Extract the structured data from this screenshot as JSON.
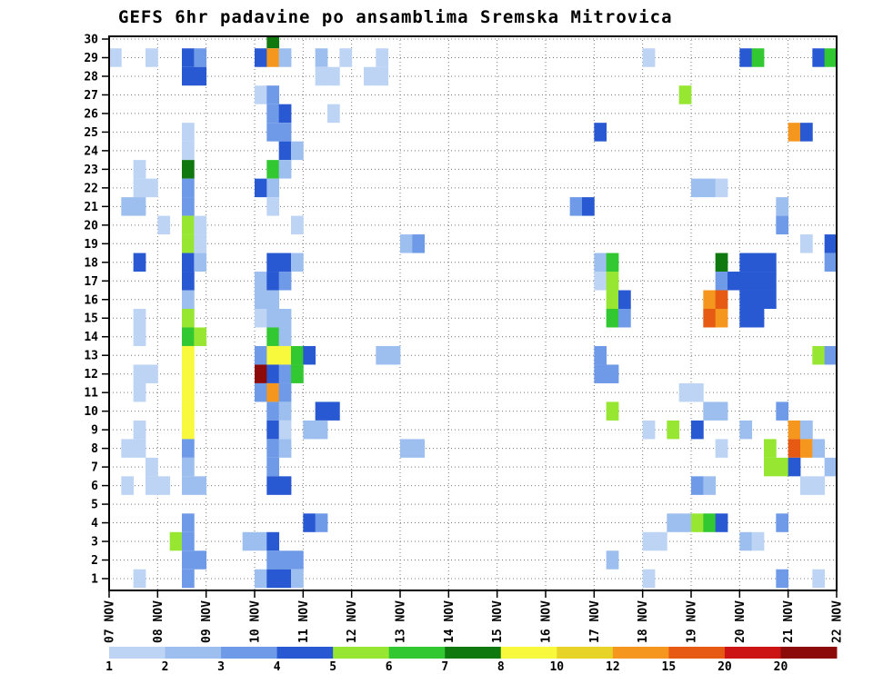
{
  "chart_data": {
    "type": "heatmap",
    "title": "GEFS 6hr padavine po ansamblima Sremska Mitrovica",
    "x_axis": {
      "labels": [
        "07 NOV",
        "08 NOV",
        "09 NOV",
        "10 NOV",
        "11 NOV",
        "12 NOV",
        "13 NOV",
        "14 NOV",
        "15 NOV",
        "16 NOV",
        "17 NOV",
        "18 NOV",
        "19 NOV",
        "20 NOV",
        "21 NOV",
        "22 NOV"
      ],
      "steps_per_day": 4
    },
    "y_axis": {
      "labels": [
        "1",
        "2",
        "3",
        "4",
        "5",
        "6",
        "7",
        "8",
        "9",
        "10",
        "11",
        "12",
        "13",
        "14",
        "15",
        "16",
        "17",
        "18",
        "19",
        "20",
        "21",
        "22",
        "23",
        "24",
        "25",
        "26",
        "27",
        "28",
        "29",
        "30"
      ],
      "description": "ensemble member"
    },
    "grid": true,
    "legend": {
      "position": "bottom",
      "boundary_labels": [
        "1",
        "2",
        "3",
        "4",
        "5",
        "6",
        "7",
        "8",
        "10",
        "12",
        "15",
        "20",
        "20"
      ],
      "colors": [
        "#bdd4f5",
        "#9dbff0",
        "#6e9ae8",
        "#2858d2",
        "#96e632",
        "#32c832",
        "#0f780f",
        "#f8f83c",
        "#e8d428",
        "#f5961e",
        "#e65a14",
        "#cd1414",
        "#8c0a0a"
      ]
    },
    "cells": [
      [
        30,
        13,
        6
      ],
      [
        29,
        0,
        0
      ],
      [
        29,
        3,
        0
      ],
      [
        29,
        6,
        3
      ],
      [
        29,
        7,
        2
      ],
      [
        29,
        12,
        3
      ],
      [
        29,
        13,
        9
      ],
      [
        29,
        14,
        1
      ],
      [
        29,
        17,
        1
      ],
      [
        29,
        19,
        0
      ],
      [
        29,
        22,
        0
      ],
      [
        29,
        44,
        0
      ],
      [
        29,
        52,
        3
      ],
      [
        29,
        53,
        5
      ],
      [
        29,
        58,
        3
      ],
      [
        29,
        59,
        5
      ],
      [
        28,
        6,
        3
      ],
      [
        28,
        7,
        3
      ],
      [
        28,
        17,
        0
      ],
      [
        28,
        18,
        0
      ],
      [
        28,
        21,
        0
      ],
      [
        28,
        22,
        0
      ],
      [
        27,
        12,
        0
      ],
      [
        27,
        13,
        2
      ],
      [
        27,
        47,
        4
      ],
      [
        26,
        13,
        2
      ],
      [
        26,
        14,
        3
      ],
      [
        26,
        18,
        0
      ],
      [
        25,
        6,
        0
      ],
      [
        25,
        13,
        2
      ],
      [
        25,
        14,
        2
      ],
      [
        25,
        40,
        3
      ],
      [
        25,
        56,
        9
      ],
      [
        25,
        57,
        3
      ],
      [
        24,
        6,
        0
      ],
      [
        24,
        14,
        3
      ],
      [
        24,
        15,
        1
      ],
      [
        23,
        2,
        0
      ],
      [
        23,
        6,
        6
      ],
      [
        23,
        13,
        5
      ],
      [
        23,
        14,
        1
      ],
      [
        22,
        2,
        0
      ],
      [
        22,
        3,
        0
      ],
      [
        22,
        6,
        2
      ],
      [
        22,
        12,
        3
      ],
      [
        22,
        13,
        1
      ],
      [
        22,
        48,
        1
      ],
      [
        22,
        49,
        1
      ],
      [
        22,
        50,
        0
      ],
      [
        21,
        1,
        1
      ],
      [
        21,
        2,
        1
      ],
      [
        21,
        6,
        2
      ],
      [
        21,
        13,
        0
      ],
      [
        21,
        38,
        2
      ],
      [
        21,
        39,
        3
      ],
      [
        21,
        55,
        1
      ],
      [
        20,
        4,
        0
      ],
      [
        20,
        6,
        4
      ],
      [
        20,
        7,
        0
      ],
      [
        20,
        15,
        0
      ],
      [
        20,
        55,
        2
      ],
      [
        19,
        6,
        4
      ],
      [
        19,
        7,
        0
      ],
      [
        19,
        24,
        1
      ],
      [
        19,
        25,
        2
      ],
      [
        19,
        57,
        0
      ],
      [
        19,
        59,
        3
      ],
      [
        18,
        2,
        3
      ],
      [
        18,
        6,
        3
      ],
      [
        18,
        7,
        1
      ],
      [
        18,
        13,
        3
      ],
      [
        18,
        14,
        3
      ],
      [
        18,
        15,
        1
      ],
      [
        18,
        40,
        1
      ],
      [
        18,
        41,
        5
      ],
      [
        18,
        50,
        6
      ],
      [
        18,
        52,
        3
      ],
      [
        18,
        53,
        3
      ],
      [
        18,
        54,
        3
      ],
      [
        18,
        59,
        2
      ],
      [
        17,
        6,
        3
      ],
      [
        17,
        12,
        1
      ],
      [
        17,
        13,
        3
      ],
      [
        17,
        14,
        2
      ],
      [
        17,
        40,
        0
      ],
      [
        17,
        41,
        4
      ],
      [
        17,
        50,
        2
      ],
      [
        17,
        51,
        3
      ],
      [
        17,
        52,
        3
      ],
      [
        17,
        53,
        3
      ],
      [
        17,
        54,
        3
      ],
      [
        16,
        6,
        1
      ],
      [
        16,
        12,
        1
      ],
      [
        16,
        13,
        1
      ],
      [
        16,
        41,
        4
      ],
      [
        16,
        42,
        3
      ],
      [
        16,
        49,
        9
      ],
      [
        16,
        50,
        10
      ],
      [
        16,
        52,
        3
      ],
      [
        16,
        53,
        3
      ],
      [
        16,
        54,
        3
      ],
      [
        15,
        2,
        0
      ],
      [
        15,
        6,
        4
      ],
      [
        15,
        12,
        0
      ],
      [
        15,
        13,
        1
      ],
      [
        15,
        14,
        1
      ],
      [
        15,
        41,
        5
      ],
      [
        15,
        42,
        2
      ],
      [
        15,
        49,
        10
      ],
      [
        15,
        50,
        9
      ],
      [
        15,
        52,
        3
      ],
      [
        15,
        53,
        3
      ],
      [
        14,
        2,
        0
      ],
      [
        14,
        6,
        5
      ],
      [
        14,
        7,
        4
      ],
      [
        14,
        13,
        5
      ],
      [
        14,
        14,
        1
      ],
      [
        13,
        6,
        7
      ],
      [
        13,
        12,
        2
      ],
      [
        13,
        13,
        7
      ],
      [
        13,
        14,
        7
      ],
      [
        13,
        15,
        5
      ],
      [
        13,
        16,
        3
      ],
      [
        13,
        22,
        1
      ],
      [
        13,
        23,
        1
      ],
      [
        13,
        40,
        2
      ],
      [
        13,
        58,
        4
      ],
      [
        13,
        59,
        2
      ],
      [
        12,
        2,
        0
      ],
      [
        12,
        3,
        0
      ],
      [
        12,
        6,
        7
      ],
      [
        12,
        12,
        12
      ],
      [
        12,
        13,
        3
      ],
      [
        12,
        14,
        2
      ],
      [
        12,
        15,
        5
      ],
      [
        12,
        40,
        2
      ],
      [
        12,
        41,
        2
      ],
      [
        11,
        2,
        0
      ],
      [
        11,
        6,
        7
      ],
      [
        11,
        12,
        2
      ],
      [
        11,
        13,
        9
      ],
      [
        11,
        14,
        2
      ],
      [
        11,
        47,
        0
      ],
      [
        11,
        48,
        0
      ],
      [
        10,
        6,
        7
      ],
      [
        10,
        13,
        2
      ],
      [
        10,
        14,
        1
      ],
      [
        10,
        17,
        3
      ],
      [
        10,
        18,
        3
      ],
      [
        10,
        41,
        4
      ],
      [
        10,
        49,
        1
      ],
      [
        10,
        50,
        1
      ],
      [
        10,
        55,
        2
      ],
      [
        9,
        2,
        0
      ],
      [
        9,
        6,
        7
      ],
      [
        9,
        13,
        3
      ],
      [
        9,
        14,
        0
      ],
      [
        9,
        16,
        1
      ],
      [
        9,
        17,
        1
      ],
      [
        9,
        44,
        0
      ],
      [
        9,
        46,
        4
      ],
      [
        9,
        48,
        3
      ],
      [
        9,
        52,
        1
      ],
      [
        9,
        56,
        9
      ],
      [
        9,
        57,
        1
      ],
      [
        8,
        1,
        0
      ],
      [
        8,
        2,
        0
      ],
      [
        8,
        6,
        2
      ],
      [
        8,
        13,
        2
      ],
      [
        8,
        14,
        1
      ],
      [
        8,
        24,
        1
      ],
      [
        8,
        25,
        1
      ],
      [
        8,
        50,
        0
      ],
      [
        8,
        54,
        4
      ],
      [
        8,
        56,
        10
      ],
      [
        8,
        57,
        9
      ],
      [
        8,
        58,
        1
      ],
      [
        7,
        3,
        0
      ],
      [
        7,
        6,
        1
      ],
      [
        7,
        13,
        2
      ],
      [
        7,
        54,
        4
      ],
      [
        7,
        55,
        4
      ],
      [
        7,
        56,
        3
      ],
      [
        7,
        59,
        1
      ],
      [
        6,
        1,
        0
      ],
      [
        6,
        3,
        0
      ],
      [
        6,
        4,
        0
      ],
      [
        6,
        6,
        1
      ],
      [
        6,
        7,
        1
      ],
      [
        6,
        13,
        3
      ],
      [
        6,
        14,
        3
      ],
      [
        6,
        48,
        2
      ],
      [
        6,
        49,
        1
      ],
      [
        6,
        57,
        0
      ],
      [
        6,
        58,
        0
      ],
      [
        4,
        6,
        2
      ],
      [
        4,
        16,
        3
      ],
      [
        4,
        17,
        2
      ],
      [
        4,
        46,
        1
      ],
      [
        4,
        47,
        1
      ],
      [
        4,
        48,
        4
      ],
      [
        4,
        49,
        5
      ],
      [
        4,
        50,
        3
      ],
      [
        4,
        55,
        2
      ],
      [
        3,
        5,
        4
      ],
      [
        3,
        6,
        2
      ],
      [
        3,
        11,
        1
      ],
      [
        3,
        12,
        1
      ],
      [
        3,
        13,
        3
      ],
      [
        3,
        44,
        0
      ],
      [
        3,
        45,
        0
      ],
      [
        3,
        52,
        1
      ],
      [
        3,
        53,
        0
      ],
      [
        2,
        6,
        2
      ],
      [
        2,
        7,
        2
      ],
      [
        2,
        13,
        2
      ],
      [
        2,
        14,
        2
      ],
      [
        2,
        15,
        2
      ],
      [
        2,
        41,
        1
      ],
      [
        1,
        2,
        0
      ],
      [
        1,
        6,
        2
      ],
      [
        1,
        12,
        1
      ],
      [
        1,
        13,
        3
      ],
      [
        1,
        14,
        3
      ],
      [
        1,
        15,
        1
      ],
      [
        1,
        44,
        0
      ],
      [
        1,
        55,
        2
      ],
      [
        1,
        58,
        0
      ]
    ]
  }
}
